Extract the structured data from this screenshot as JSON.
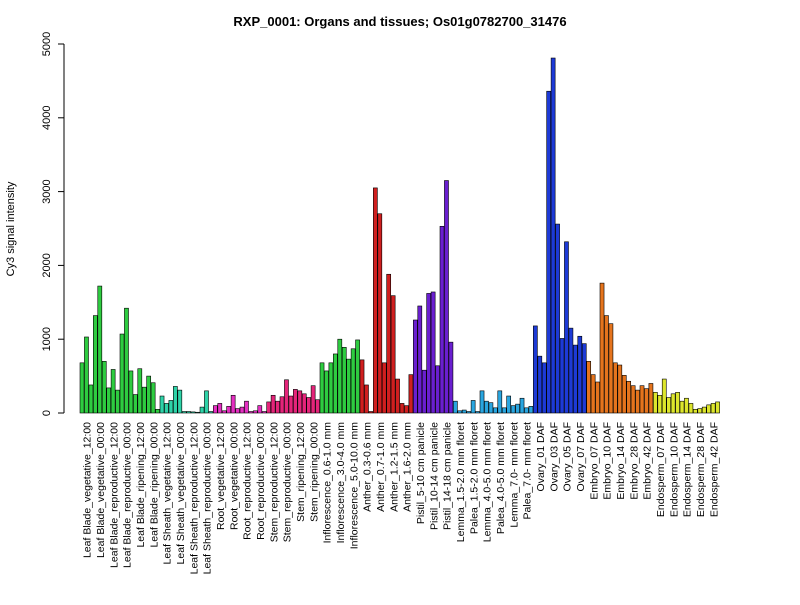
{
  "chart_data": {
    "type": "bar",
    "title": "RXP_0001: Organs and tissues; Os01g0782700_31476",
    "ylabel": "Cy3 signal intensity",
    "xlabel": "",
    "ylim": [
      0,
      5000
    ],
    "yticks": [
      0,
      1000,
      2000,
      3000,
      4000,
      5000
    ],
    "tick_labels": [
      "Leaf Blade_vegetative_12:00",
      "Leaf Blade_vegetative_00:00",
      "Leaf Blade_reproductive_12:00",
      "Leaf Blade_reproductive_00:00",
      "Leaf Blade_ripening_12:00",
      "Leaf Blade_ripening_00:00",
      "Leaf Sheath_vegetative_12:00",
      "Leaf Sheath_vegetative_00:00",
      "Leaf Sheath_reproductive_12:00",
      "Leaf Sheath_reproductive_00:00",
      "Root_vegetative_12:00",
      "Root_vegetative_00:00",
      "Root_reproductive_12:00",
      "Root_reproductive_00:00",
      "Stem_reproductive_12:00",
      "Stem_reproductive_00:00",
      "Stem_ripening_12:00",
      "Stem_ripening_00:00",
      "Inflorescence_0.6-1.0 mm",
      "Inflorescence_3.0-4.0 mm",
      "Inflorescence_5.0-10.0 mm",
      "Anther_0.3-0.6 mm",
      "Anther_0.7-1.0 mm",
      "Anther_1.2-1.5 mm",
      "Anther_1.6-2.0 mm",
      "Pistil_5-10 cm panicle",
      "Pistil_10-14 cm panicle",
      "Pistil_14-18 cm panicle",
      "Lemma_1.5-2.0 mm floret",
      "Palea_1.5-2.0 mm floret",
      "Lemma_4.0-5.0 mm floret",
      "Palea_4.0-5.0 mm floret",
      "Lemma_7.0- mm floret",
      "Palea_7.0- mm floret",
      "Ovary_01 DAF",
      "Ovary_03 DAF",
      "Ovary_05 DAF",
      "Ovary_07 DAF",
      "Embryo_07 DAF",
      "Embryo_10 DAF",
      "Embryo_14 DAF",
      "Embryo_28 DAF",
      "Embryo_42 DAF",
      "Endosperm_07 DAF",
      "Endosperm_10 DAF",
      "Endosperm_14 DAF",
      "Endosperm_28 DAF",
      "Endosperm_42 DAF"
    ],
    "groups": [
      {
        "color": "#2ecc40",
        "values": [
          680,
          1030,
          380
        ]
      },
      {
        "color": "#2ecc40",
        "values": [
          1320,
          1720,
          700
        ]
      },
      {
        "color": "#2ecc40",
        "values": [
          340,
          590,
          310
        ]
      },
      {
        "color": "#2ecc40",
        "values": [
          1070,
          1420,
          570
        ]
      },
      {
        "color": "#2ecc40",
        "values": [
          250,
          600,
          350
        ]
      },
      {
        "color": "#2ecc40",
        "values": [
          500,
          410,
          50
        ]
      },
      {
        "color": "#2ed3a8",
        "values": [
          230,
          130,
          170
        ]
      },
      {
        "color": "#2ed3a8",
        "values": [
          360,
          310,
          20
        ]
      },
      {
        "color": "#2ed3a8",
        "values": [
          20,
          15,
          10
        ]
      },
      {
        "color": "#2ed3a8",
        "values": [
          80,
          300,
          20
        ]
      },
      {
        "color": "#e52fc2",
        "values": [
          100,
          130,
          30
        ]
      },
      {
        "color": "#e52fc2",
        "values": [
          90,
          240,
          60
        ]
      },
      {
        "color": "#e52fc2",
        "values": [
          80,
          160,
          20
        ]
      },
      {
        "color": "#e52fc2",
        "values": [
          30,
          100,
          20
        ]
      },
      {
        "color": "#e5247a",
        "values": [
          150,
          240,
          160
        ]
      },
      {
        "color": "#e5247a",
        "values": [
          220,
          450,
          230
        ]
      },
      {
        "color": "#e5247a",
        "values": [
          320,
          300,
          260
        ]
      },
      {
        "color": "#e5247a",
        "values": [
          210,
          370,
          180
        ]
      },
      {
        "color": "#2ecc40",
        "values": [
          680,
          570,
          680
        ]
      },
      {
        "color": "#2ecc40",
        "values": [
          800,
          1000,
          890
        ]
      },
      {
        "color": "#2ecc40",
        "values": [
          730,
          870,
          990
        ]
      },
      {
        "color": "#d01f1f",
        "values": [
          720,
          380,
          20
        ]
      },
      {
        "color": "#d01f1f",
        "values": [
          3050,
          2700,
          680
        ]
      },
      {
        "color": "#d01f1f",
        "values": [
          1880,
          1590,
          460
        ]
      },
      {
        "color": "#d01f1f",
        "values": [
          130,
          100,
          520
        ]
      },
      {
        "color": "#6a1fd0",
        "values": [
          1260,
          1450,
          580
        ]
      },
      {
        "color": "#6a1fd0",
        "values": [
          1620,
          1640,
          640
        ]
      },
      {
        "color": "#6a1fd0",
        "values": [
          2530,
          3150,
          960
        ]
      },
      {
        "color": "#2aa6e0",
        "values": [
          160,
          30,
          40
        ]
      },
      {
        "color": "#2aa6e0",
        "values": [
          20,
          170,
          20
        ]
      },
      {
        "color": "#2aa6e0",
        "values": [
          300,
          160,
          140
        ]
      },
      {
        "color": "#2aa6e0",
        "values": [
          70,
          300,
          70
        ]
      },
      {
        "color": "#2aa6e0",
        "values": [
          230,
          100,
          120
        ]
      },
      {
        "color": "#2aa6e0",
        "values": [
          200,
          70,
          90
        ]
      },
      {
        "color": "#1d3ad6",
        "values": [
          1180,
          770,
          680
        ]
      },
      {
        "color": "#1d3ad6",
        "values": [
          4360,
          4810,
          2560
        ]
      },
      {
        "color": "#1d3ad6",
        "values": [
          1010,
          2320,
          1150
        ]
      },
      {
        "color": "#1d3ad6",
        "values": [
          920,
          1040,
          940
        ]
      },
      {
        "color": "#e5741d",
        "values": [
          700,
          520,
          420
        ]
      },
      {
        "color": "#e5741d",
        "values": [
          1760,
          1320,
          1210
        ]
      },
      {
        "color": "#e5741d",
        "values": [
          680,
          650,
          510
        ]
      },
      {
        "color": "#e5741d",
        "values": [
          430,
          370,
          310
        ]
      },
      {
        "color": "#e5741d",
        "values": [
          370,
          330,
          400
        ]
      },
      {
        "color": "#dde62c",
        "values": [
          280,
          240,
          460
        ]
      },
      {
        "color": "#dde62c",
        "values": [
          210,
          260,
          280
        ]
      },
      {
        "color": "#dde62c",
        "values": [
          160,
          200,
          130
        ]
      },
      {
        "color": "#dde62c",
        "values": [
          50,
          60,
          80
        ]
      },
      {
        "color": "#dde62c",
        "values": [
          110,
          130,
          150
        ]
      }
    ]
  }
}
